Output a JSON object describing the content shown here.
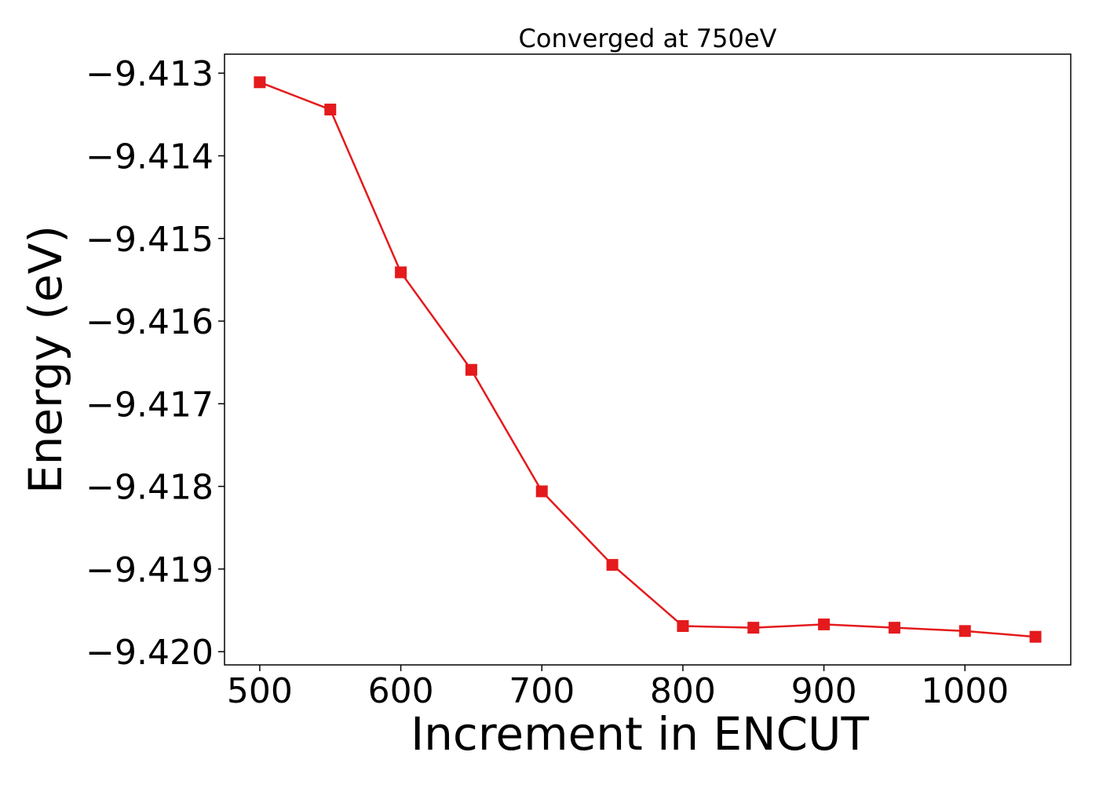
{
  "chart_data": {
    "type": "line",
    "title": "Converged at 750eV",
    "xlabel": "Increment in ENCUT",
    "ylabel": "Energy (eV)",
    "x": [
      500,
      550,
      600,
      650,
      700,
      750,
      800,
      850,
      900,
      950,
      1000,
      1050
    ],
    "series": [
      {
        "values": [
          -9.41311,
          -9.41344,
          -9.41541,
          -9.41659,
          -9.41806,
          -9.41895,
          -9.41969,
          -9.41971,
          -9.41967,
          -9.41971,
          -9.41975,
          -9.41982
        ],
        "color": "#e41a1c",
        "marker": "square"
      }
    ],
    "xlim": [
      475,
      1075
    ],
    "ylim": [
      -9.42016,
      -9.41277
    ],
    "xticks": [
      500,
      600,
      700,
      800,
      900,
      1000
    ],
    "xtick_labels": [
      "500",
      "600",
      "700",
      "800",
      "900",
      "1000"
    ],
    "yticks": [
      -9.413,
      -9.414,
      -9.415,
      -9.416,
      -9.417,
      -9.418,
      -9.419,
      -9.42
    ],
    "ytick_labels": [
      "−9.413",
      "−9.414",
      "−9.415",
      "−9.416",
      "−9.417",
      "−9.418",
      "−9.419",
      "−9.420"
    ],
    "grid": false,
    "legend": "none"
  }
}
